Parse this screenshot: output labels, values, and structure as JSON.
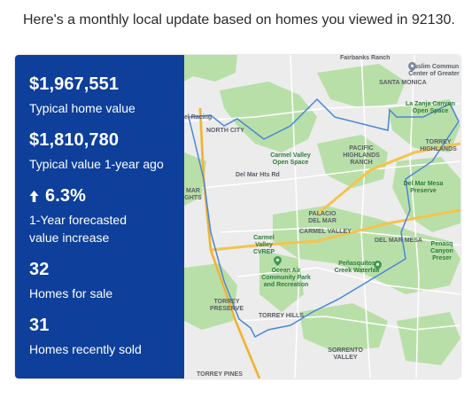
{
  "headline": "Here's a monthly local update based on homes you viewed in 92130.",
  "stats": [
    {
      "value": "$1,967,551",
      "label": "Typical home value"
    },
    {
      "value": "$1,810,780",
      "label": "Typical value 1-year ago"
    },
    {
      "value": "6.3%",
      "label": "1-Year forecasted value increase",
      "icon": "arrow-up-icon"
    },
    {
      "value": "32",
      "label": "Homes for sale"
    },
    {
      "value": "31",
      "label": "Homes recently sold"
    }
  ],
  "map": {
    "labels": {
      "fairbanks_ranch": "Fairbanks Ranch",
      "santa_monica": "SANTA MONICA",
      "muslim_center": "Muslim Commun Center of Greater",
      "la_zanja": "La Zanja Canyon Open Space",
      "north_city": "NORTH CITY",
      "torrey_highlands": "TORREY HIGHLANDS",
      "carmel_valley_open": "Carmel Valley Open Space",
      "pacific_highlands": "PACIFIC HIGHLANDS RANCH",
      "del_mar_mesa_preserve": "Del Mar Mesa Preserve",
      "palacio": "PALACIO DEL MAR",
      "carmel_valley": "CARMEL VALLEY",
      "del_mar_mesa": "DEL MAR MESA",
      "cvrep": "Carmel Valley CVREP",
      "penasquitos": "Peñasquitos Creek Waterfall",
      "ocean_air": "Ocean Air Community Park and Recreation",
      "torrey_preserve": "TORREY PRESERVE",
      "torrey_hills": "TORREY HILLS",
      "sorrento": "SORRENTO VALLEY",
      "el_racing": "el Racing",
      "mar_heights": "MAR GHTS",
      "penasquitos_canyon": "Penasq Canyon Preser",
      "torrey_pines": "TORREY PINES",
      "rd_del_mar": "Del Mar Hts Rd"
    },
    "colors": {
      "panel": "#0d3f9b",
      "boundary": "#4a86d9",
      "park": "#b9dfa8",
      "highway": "#f5c34c",
      "road": "#ffffff"
    }
  }
}
